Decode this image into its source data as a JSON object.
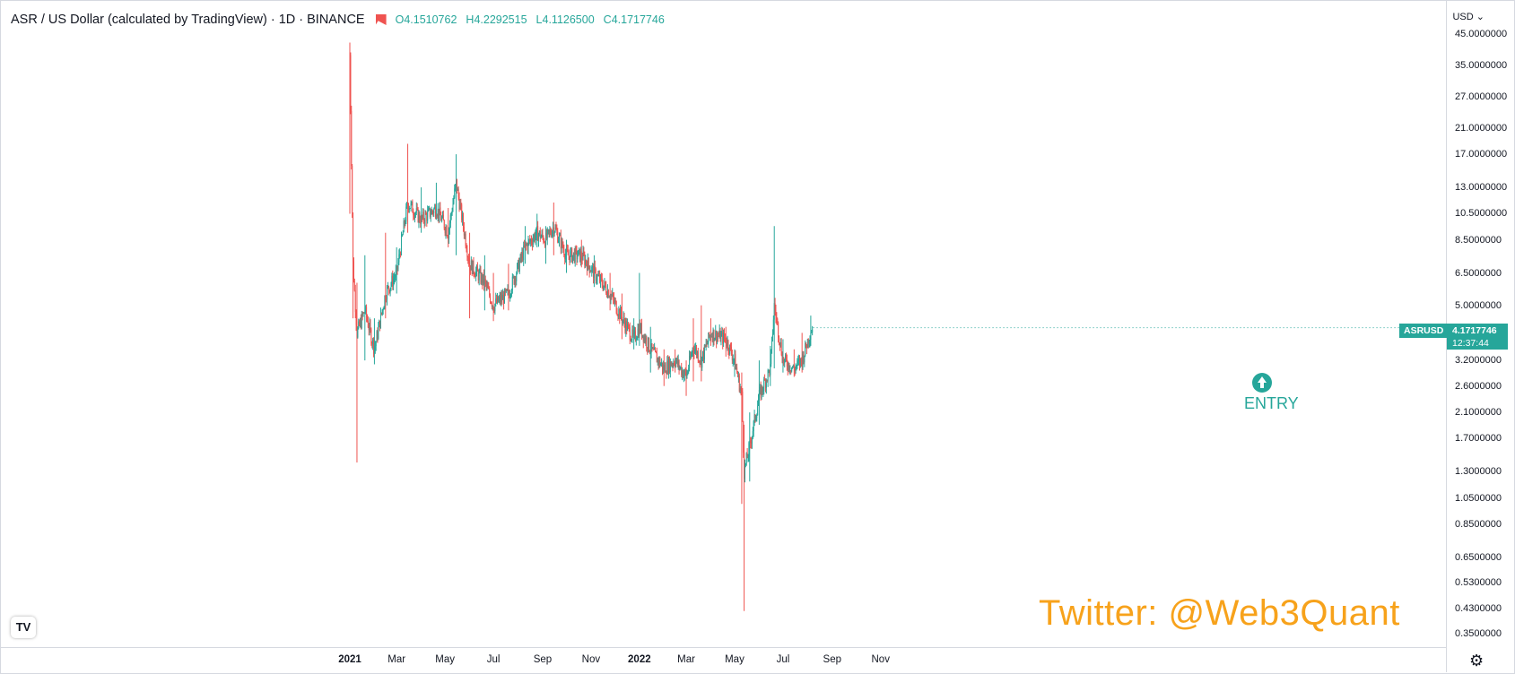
{
  "header": {
    "title": "ASR / US Dollar (calculated by TradingView) · 1D · BINANCE",
    "open_label": "O",
    "open": "4.1510762",
    "high_label": "H",
    "high": "4.2292515",
    "low_label": "L",
    "low": "4.1126500",
    "close_label": "C",
    "close": "4.1717746"
  },
  "currency_label": "USD",
  "symbol_tag": "ASRUSD",
  "last_price": "4.1717746",
  "countdown": "12:37:44",
  "entry_label": "ENTRY",
  "watermark": "Twitter: @Web3Quant",
  "logo_text": "TV",
  "colors": {
    "up": "#26a69a",
    "down": "#ef5350",
    "watermark": "#f7a21b"
  },
  "chart_data": {
    "type": "candlestick",
    "scale": "log",
    "ylim": [
      0.33,
      46
    ],
    "y_ticks": [
      "45.0000000",
      "35.0000000",
      "27.0000000",
      "21.0000000",
      "17.0000000",
      "13.0000000",
      "10.5000000",
      "8.5000000",
      "6.5000000",
      "5.0000000",
      "3.2000000",
      "2.6000000",
      "2.1000000",
      "1.7000000",
      "1.3000000",
      "1.0500000",
      "0.8500000",
      "0.6500000",
      "0.5300000",
      "0.4300000",
      "0.3500000"
    ],
    "x_ticks": [
      {
        "label": "2021",
        "bold": true
      },
      {
        "label": "Mar",
        "bold": false
      },
      {
        "label": "May",
        "bold": false
      },
      {
        "label": "Jul",
        "bold": false
      },
      {
        "label": "Sep",
        "bold": false
      },
      {
        "label": "Nov",
        "bold": false
      },
      {
        "label": "2022",
        "bold": true
      },
      {
        "label": "Mar",
        "bold": false
      },
      {
        "label": "May",
        "bold": false
      },
      {
        "label": "Jul",
        "bold": false
      },
      {
        "label": "Sep",
        "bold": false
      },
      {
        "label": "Nov",
        "bold": false
      }
    ],
    "x_start": "2021-01-01",
    "series_path": [
      [
        "2021-01-01",
        38.0,
        42.0,
        10.5
      ],
      [
        "2021-01-05",
        7.0,
        10.0,
        4.5
      ],
      [
        "2021-01-10",
        4.0,
        6.0,
        1.4
      ],
      [
        "2021-01-20",
        4.8,
        7.5,
        3.2
      ],
      [
        "2021-02-01",
        3.5,
        4.5,
        3.1
      ],
      [
        "2021-02-15",
        5.5,
        9.0,
        4.5
      ],
      [
        "2021-03-01",
        6.5,
        8.0,
        5.5
      ],
      [
        "2021-03-15",
        11.5,
        18.5,
        9.0
      ],
      [
        "2021-04-01",
        10.0,
        13.0,
        9.0
      ],
      [
        "2021-04-20",
        11.0,
        13.5,
        10.0
      ],
      [
        "2021-05-05",
        9.0,
        11.0,
        8.0
      ],
      [
        "2021-05-15",
        13.5,
        17.0,
        7.5
      ],
      [
        "2021-06-01",
        7.0,
        9.0,
        4.5
      ],
      [
        "2021-06-20",
        6.0,
        7.5,
        4.8
      ],
      [
        "2021-07-01",
        5.0,
        6.5,
        4.4
      ],
      [
        "2021-07-20",
        5.5,
        7.0,
        4.8
      ],
      [
        "2021-08-10",
        8.0,
        9.5,
        7.0
      ],
      [
        "2021-08-25",
        9.0,
        10.5,
        8.0
      ],
      [
        "2021-09-05",
        8.5,
        9.5,
        7.0
      ],
      [
        "2021-09-15",
        9.5,
        11.5,
        7.5
      ],
      [
        "2021-10-01",
        7.5,
        8.5,
        6.5
      ],
      [
        "2021-10-20",
        7.5,
        8.5,
        6.8
      ],
      [
        "2021-11-05",
        6.5,
        7.5,
        5.8
      ],
      [
        "2021-11-25",
        5.5,
        6.5,
        4.8
      ],
      [
        "2021-12-10",
        4.5,
        5.5,
        3.8
      ],
      [
        "2021-12-25",
        3.8,
        4.5,
        3.5
      ],
      [
        "2022-01-01",
        4.2,
        6.5,
        3.6
      ],
      [
        "2022-01-15",
        3.5,
        4.2,
        2.9
      ],
      [
        "2022-02-01",
        3.0,
        3.5,
        2.6
      ],
      [
        "2022-02-15",
        3.2,
        3.5,
        2.9
      ],
      [
        "2022-03-01",
        2.8,
        3.2,
        2.4
      ],
      [
        "2022-03-10",
        3.6,
        4.5,
        2.7
      ],
      [
        "2022-03-20",
        3.2,
        5.0,
        2.7
      ],
      [
        "2022-04-01",
        4.0,
        4.5,
        3.6
      ],
      [
        "2022-04-20",
        3.8,
        4.2,
        3.3
      ],
      [
        "2022-05-01",
        3.2,
        3.5,
        2.8
      ],
      [
        "2022-05-10",
        2.4,
        2.9,
        1.0
      ],
      [
        "2022-05-13",
        1.3,
        1.9,
        0.42
      ],
      [
        "2022-05-20",
        1.6,
        2.1,
        1.2
      ],
      [
        "2022-06-01",
        2.4,
        3.2,
        1.9
      ],
      [
        "2022-06-15",
        3.0,
        3.6,
        2.6
      ],
      [
        "2022-06-20",
        5.0,
        9.5,
        3.0
      ],
      [
        "2022-07-01",
        3.2,
        3.8,
        2.9
      ],
      [
        "2022-07-15",
        3.0,
        3.5,
        2.8
      ],
      [
        "2022-07-25",
        3.2,
        4.0,
        2.9
      ],
      [
        "2022-08-05",
        4.1,
        4.6,
        3.6
      ],
      [
        "2022-08-08",
        4.17,
        4.6,
        4.0
      ]
    ]
  }
}
